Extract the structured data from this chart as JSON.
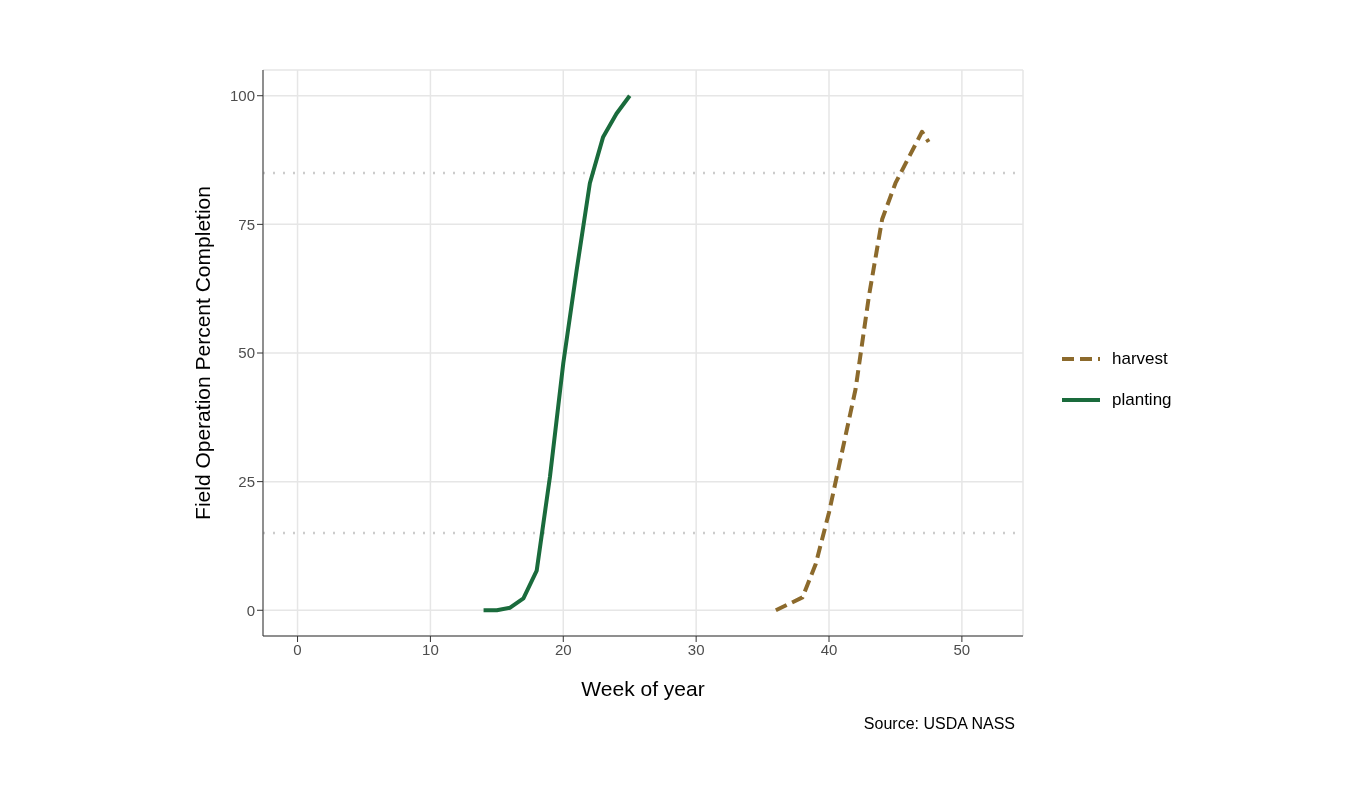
{
  "chart_data": {
    "type": "line",
    "xlabel": "Week of year",
    "ylabel": "Field Operation Percent Completion",
    "annotations": [
      "Source: USDA NASS"
    ],
    "series": [
      {
        "name": "harvest",
        "color": "#8c6a2c",
        "line_style": "dashed",
        "x": [
          36,
          38,
          39,
          40,
          41,
          42,
          43,
          44,
          45,
          46,
          47,
          47.5
        ],
        "values": [
          0,
          2.5,
          9,
          19,
          31,
          43,
          61,
          76,
          83,
          88,
          93,
          91
        ]
      },
      {
        "name": "planting",
        "color": "#1a6b3c",
        "line_style": "solid",
        "x": [
          14,
          15,
          16,
          17,
          18,
          19,
          20,
          21,
          22,
          23,
          24,
          25
        ],
        "values": [
          0,
          0,
          0.5,
          2.3,
          7.7,
          26,
          48,
          66,
          83,
          92,
          96.5,
          100
        ]
      }
    ],
    "xlim": [
      -2.6,
      54.6
    ],
    "xticks": [
      0,
      10,
      20,
      30,
      40,
      50
    ],
    "ylim": [
      -5,
      105
    ],
    "yticks": [
      0,
      25,
      50,
      75,
      100
    ],
    "ref_lines": [
      {
        "axis": "y",
        "value": 85,
        "color": "#cccccc",
        "line_style": "dotted"
      },
      {
        "axis": "y",
        "value": 15,
        "color": "#cccccc",
        "line_style": "dotted"
      }
    ],
    "grid": true,
    "legend": "right",
    "marker": "none"
  }
}
